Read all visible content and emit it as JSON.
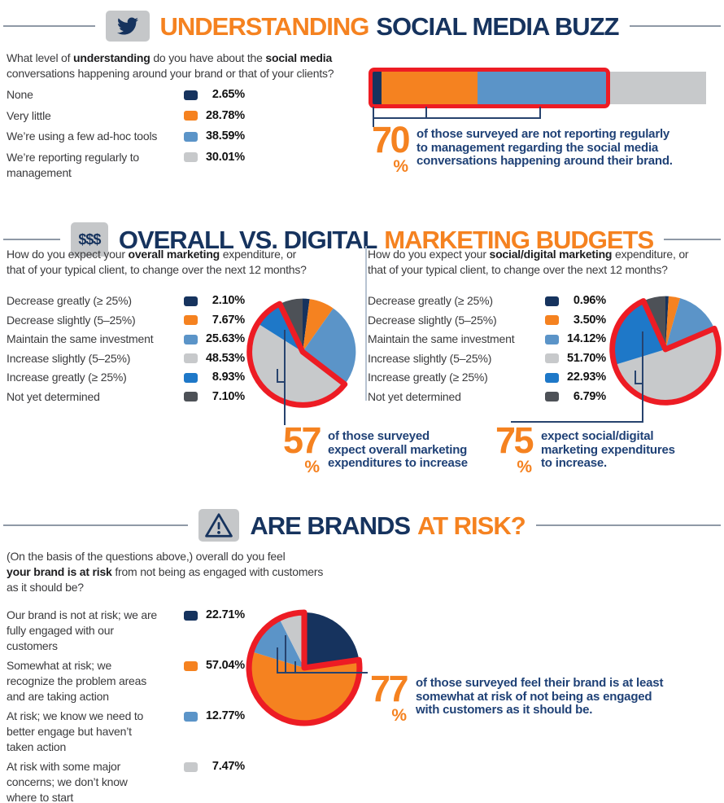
{
  "palette": {
    "navy": "#16335e",
    "orange": "#f58220",
    "steel_blue": "#5b94c8",
    "bright_blue": "#1e78c8",
    "light_gray": "#c7c9cb",
    "dark_gray": "#4d5157",
    "red": "#ed1c24",
    "callout_navy": "#1f4176",
    "body_text": "#3a3a3c",
    "line_gray": "#8f99a6",
    "icon_gray": "#c5c7c9",
    "connector": "#27436e",
    "divider": "#b7c3d2"
  },
  "sections": {
    "buzz": {
      "icon": "twitter-bird-icon",
      "title_orange": "UNDERSTANDING",
      "title_navy": "SOCIAL MEDIA BUZZ",
      "question_lines": [
        [
          {
            "t": "What level of "
          },
          {
            "t": "understanding",
            "b": true
          },
          {
            "t": " do you have about the "
          },
          {
            "t": "social media",
            "b": true
          }
        ],
        [
          {
            "t": "conversations happening around your brand or that of your clients?"
          }
        ]
      ],
      "callout": {
        "number": "70",
        "percent_sign": "%",
        "lines": [
          "of those surveyed are not reporting regularly",
          "to management regarding the social media",
          "conversations happening around their brand."
        ]
      }
    },
    "budgets": {
      "icon_label": "$$$",
      "title_navy": "OVERALL VS. DIGITAL",
      "title_orange": "MARKETING BUDGETS",
      "left": {
        "question_lines": [
          [
            {
              "t": "How do you expect your "
            },
            {
              "t": "overall marketing",
              "b": true
            },
            {
              "t": " expenditure, or"
            }
          ],
          [
            {
              "t": "that of your typical client, to change over the next 12 months?"
            }
          ]
        ],
        "callout": {
          "number": "57",
          "percent_sign": "%",
          "lines": [
            "of those surveyed",
            "expect overall marketing",
            "expenditures to increase"
          ]
        }
      },
      "right": {
        "question_lines": [
          [
            {
              "t": "How do you expect your "
            },
            {
              "t": "social/digital marketing",
              "b": true
            },
            {
              "t": " expenditure, or"
            }
          ],
          [
            {
              "t": "that of your typical client, to change over the next 12 months?"
            }
          ]
        ],
        "callout": {
          "number": "75",
          "percent_sign": "%",
          "lines": [
            "expect social/digital",
            "marketing expenditures",
            "to increase."
          ]
        }
      }
    },
    "risk": {
      "icon": "warning-triangle-icon",
      "title_navy": "ARE BRANDS",
      "title_orange": "AT RISK?",
      "question_lines": [
        [
          {
            "t": "(On the basis of the questions above,) overall do you feel"
          }
        ],
        [
          {
            "t": "your brand is at risk",
            "b": true
          },
          {
            "t": " from not being as engaged with customers"
          }
        ],
        [
          {
            "t": "as it should be?"
          }
        ]
      ],
      "callout": {
        "number": "77",
        "percent_sign": "%",
        "lines": [
          "of those surveyed feel their brand is at least",
          "somewhat at risk of not being as engaged",
          "with customers as it should be."
        ]
      }
    }
  },
  "chart_data": [
    {
      "id": "understanding-bar",
      "type": "bar",
      "orientation": "horizontal",
      "stacked": true,
      "title": "Understanding social media buzz",
      "categories": [
        "None",
        "Very little",
        "We’re using a few ad-hoc tools",
        "We’re reporting regularly to management"
      ],
      "values": [
        2.65,
        28.78,
        38.59,
        30.01
      ],
      "labels": [
        "2.65%",
        "28.78%",
        "38.59%",
        "30.01%"
      ],
      "colors": [
        "#16335e",
        "#f58220",
        "#5b94c8",
        "#c7c9cb"
      ],
      "highlight": {
        "from": 0,
        "to": 2,
        "callout": "70%",
        "style": "red-outline"
      }
    },
    {
      "id": "overall-marketing-pie",
      "type": "pie",
      "title": "Overall marketing budget change (next 12 months)",
      "start_angle": "12 o'clock",
      "direction": "clockwise",
      "categories": [
        "Decrease greatly (≥ 25%)",
        "Decrease slightly (5–25%)",
        "Maintain the same investment",
        "Increase slightly (5–25%)",
        "Increase greatly (≥ 25%)",
        "Not yet determined"
      ],
      "values": [
        2.1,
        7.67,
        25.63,
        48.53,
        8.93,
        7.1
      ],
      "labels": [
        "2.10%",
        "7.67%",
        "25.63%",
        "48.53%",
        "8.93%",
        "7.10%"
      ],
      "colors": [
        "#16335e",
        "#f58220",
        "#5b94c8",
        "#c7c9cb",
        "#1e78c8",
        "#4d5157"
      ],
      "highlight": {
        "from": 3,
        "to": 4,
        "callout": "57%",
        "style": "red-outline"
      }
    },
    {
      "id": "digital-marketing-pie",
      "type": "pie",
      "title": "Social/digital marketing budget change (next 12 months)",
      "start_angle": "12 o'clock",
      "direction": "clockwise",
      "categories": [
        "Decrease greatly (≥ 25%)",
        "Decrease slightly (5–25%)",
        "Maintain the same investment",
        "Increase slightly (5–25%)",
        "Increase greatly (≥ 25%)",
        "Not yet determined"
      ],
      "values": [
        0.96,
        3.5,
        14.12,
        51.7,
        22.93,
        6.79
      ],
      "labels": [
        "0.96%",
        "3.50%",
        "14.12%",
        "51.70%",
        "22.93%",
        "6.79%"
      ],
      "colors": [
        "#16335e",
        "#f58220",
        "#5b94c8",
        "#c7c9cb",
        "#1e78c8",
        "#4d5157"
      ],
      "highlight": {
        "from": 3,
        "to": 4,
        "callout": "75%",
        "style": "red-outline"
      }
    },
    {
      "id": "brand-risk-pie",
      "type": "pie",
      "title": "Are brands at risk?",
      "start_angle": "12 o'clock",
      "direction": "clockwise",
      "categories": [
        "Our brand is not at risk; we are fully engaged with our customers",
        "Somewhat at risk; we recognize the problem areas and are taking action",
        "At risk; we know we need to better engage but haven’t taken action",
        "At risk with some major concerns; we don’t know where to start"
      ],
      "values": [
        22.71,
        57.04,
        12.77,
        7.47
      ],
      "labels": [
        "22.71%",
        "57.04%",
        "12.77%",
        "7.47%"
      ],
      "colors": [
        "#16335e",
        "#f58220",
        "#5b94c8",
        "#c7c9cb"
      ],
      "highlight": {
        "from": 1,
        "to": 3,
        "callout": "77%",
        "style": "red-outline"
      }
    }
  ]
}
